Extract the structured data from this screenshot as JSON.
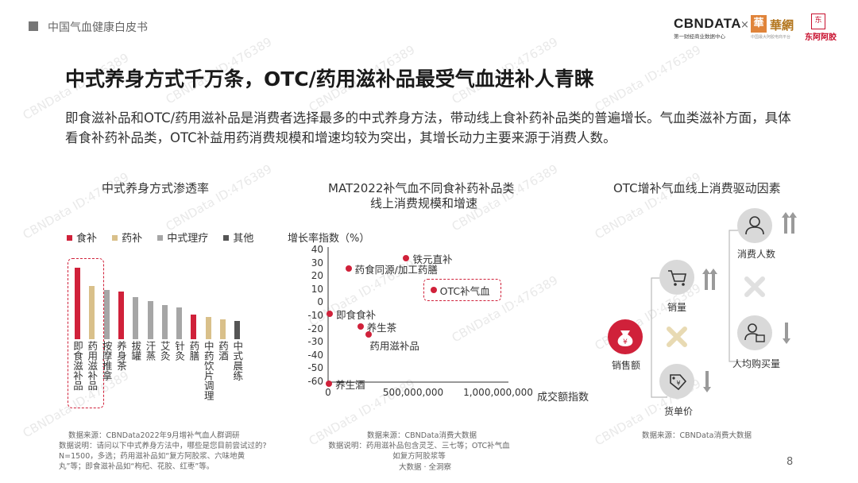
{
  "header": {
    "report_name": "中国气血健康白皮书",
    "logo_cbndata": "CBNDATA",
    "logo_cbndata_sub": "第一财经商业数据中心",
    "logo_x": "×",
    "logo_huawang": "華網",
    "logo_huawang_sub": "中国最大阿胶电商平台",
    "logo_dong_e": "东阿阿胶"
  },
  "title": "中式养身方式千万条，OTC/药用滋补品最受气血进补人青睐",
  "description": "即食滋补品和OTC/药用滋补品是消费者选择最多的中式养身方法，带动线上食补药补品类的普遍增长。气血类滋补方面，具体看食补药补品类，OTC补益用药消费规模和增速均较为突出，其增长动力主要来源于消费人数。",
  "left_chart": {
    "title": "中式养身方式渗透率",
    "legend": [
      {
        "label": "食补",
        "color": "#d0213a"
      },
      {
        "label": "药补",
        "color": "#d9c08a"
      },
      {
        "label": "中式理疗",
        "color": "#a6a6a6"
      },
      {
        "label": "其他",
        "color": "#555555"
      }
    ],
    "note_source": "数据来源：CBNData2022年9月增补气血人群调研",
    "note_desc": "数据说明：请问以下中式养身方法中，哪些是您目前尝试过的? N=1500，多选；药用滋补品如“复方阿胶浆、六味地黄丸”等；即食滋补品如“枸杞、花胶、红枣”等。"
  },
  "chart_data": [
    {
      "type": "bar",
      "title": "中式养身方式渗透率",
      "categories": [
        "即食滋补品",
        "药用滋补品",
        "按摩推拿",
        "养身茶",
        "拔罐",
        "汗蒸",
        "艾灸",
        "针灸",
        "药膳",
        "中药饮片调理",
        "药酒",
        "中式晨练"
      ],
      "values": [
        58,
        43,
        40,
        39,
        34,
        31,
        28,
        26,
        20,
        18,
        16,
        15
      ],
      "groups": [
        "食补",
        "药补",
        "中式理疗",
        "食补",
        "中式理疗",
        "中式理疗",
        "中式理疗",
        "中式理疗",
        "食补",
        "药补",
        "药补",
        "其他"
      ],
      "ylim": [
        0,
        65
      ]
    },
    {
      "type": "scatter",
      "title": "MAT2022补气血不同食补药补品类线上消费规模和增速",
      "xlabel": "成交额指数",
      "ylabel": "增长率指数（%）",
      "xlim": [
        0,
        1000000000
      ],
      "ylim": [
        -60,
        40
      ],
      "xticks": [
        "0",
        "500,000,000",
        "1,000,000,000"
      ],
      "yticks": [
        "40",
        "30",
        "20",
        "10",
        "0",
        "-10",
        "-20",
        "-30",
        "-40",
        "-50",
        "-60"
      ],
      "points": [
        {
          "label": "铁元直补",
          "x": 460000000,
          "y": 34
        },
        {
          "label": "药食同源/加工药膳",
          "x": 120000000,
          "y": 26
        },
        {
          "label": "OTC补气血",
          "x": 620000000,
          "y": 10
        },
        {
          "label": "即食食补",
          "x": 10000000,
          "y": -8
        },
        {
          "label": "养生茶",
          "x": 190000000,
          "y": -18
        },
        {
          "label": "药用滋补品",
          "x": 240000000,
          "y": -24
        },
        {
          "label": "养生酒",
          "x": 5000000,
          "y": -61
        }
      ],
      "highlight": "OTC补气血"
    }
  ],
  "mid_chart": {
    "title_line1": "MAT2022补气血不同食补药补品类",
    "title_line2": "线上消费规模和增速",
    "ylabel": "增长率指数（%）",
    "xlabel": "成交额指数",
    "note_source": "数据来源：CBNData消费大数据",
    "note_desc": "数据说明：药用滋补品包含灵芝、三七等；OTC补气血如复方阿胶浆等",
    "footer": "大数据 · 全洞察"
  },
  "right_chart": {
    "title": "OTC增补气血线上消费驱动因素",
    "sales": "销售额",
    "volume": "销量",
    "unit_price": "货单价",
    "consumers": "消费人数",
    "per_capita": "人均购买量",
    "note_source": "数据来源：CBNData消费大数据",
    "colors": {
      "accent": "#d0213a",
      "cross": "#e8dab3",
      "grey": "#d9d9d9"
    }
  },
  "page_number": "8",
  "watermark": "CBNData ID:476389"
}
